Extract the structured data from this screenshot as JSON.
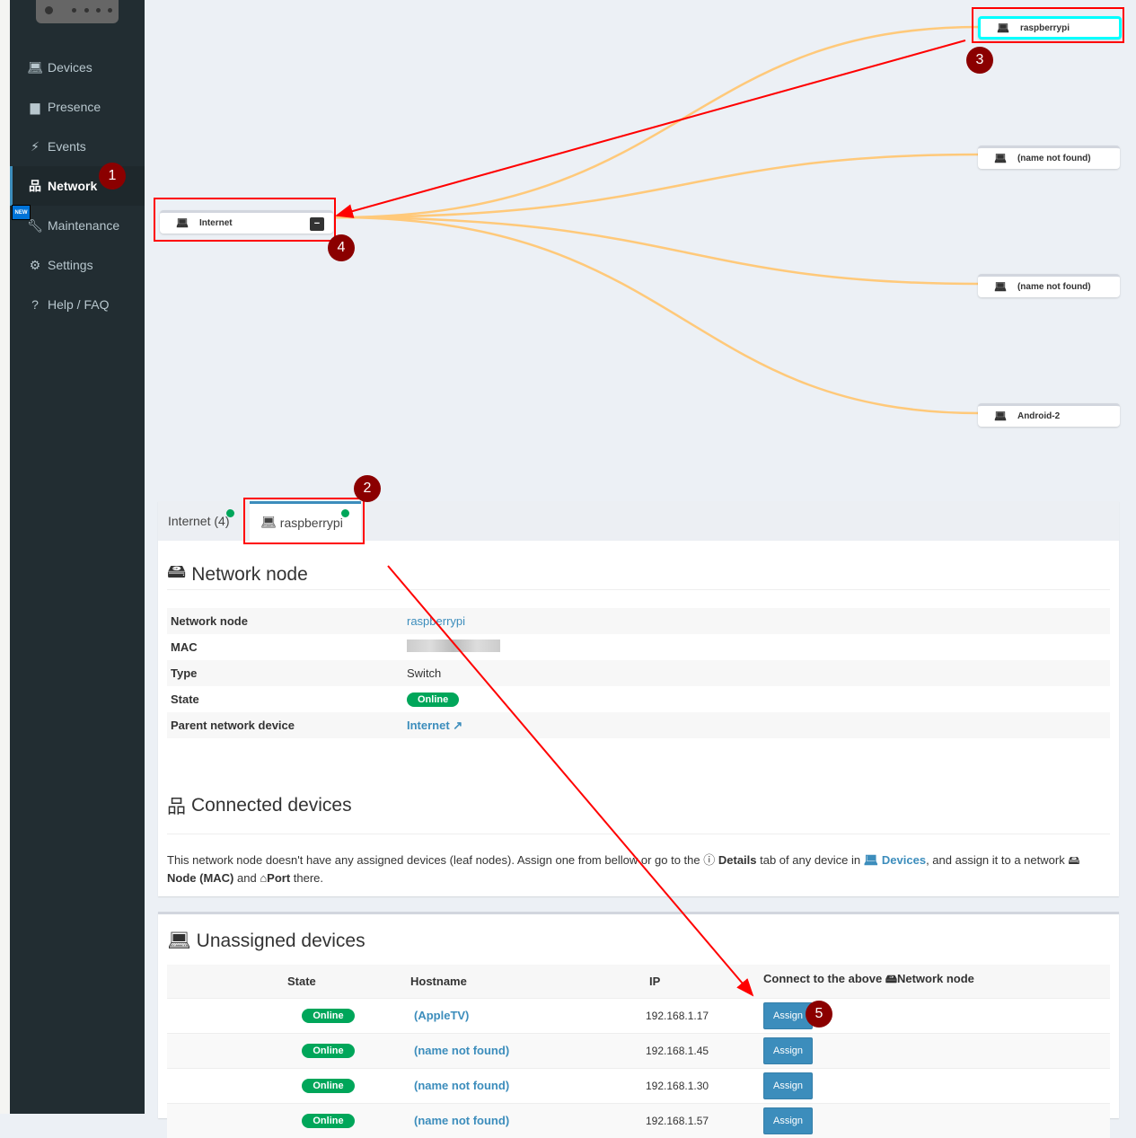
{
  "sidebar": {
    "items": [
      {
        "label": "Devices",
        "icon": "laptop-icon"
      },
      {
        "label": "Presence",
        "icon": "calendar-icon"
      },
      {
        "label": "Events",
        "icon": "bolt-icon"
      },
      {
        "label": "Network",
        "icon": "sitemap-icon",
        "active": true
      },
      {
        "label": "Maintenance",
        "icon": "wrench-icon",
        "badge": "NEW"
      },
      {
        "label": "Settings",
        "icon": "gear-icon"
      },
      {
        "label": "Help / FAQ",
        "icon": "question-icon"
      }
    ]
  },
  "graph": {
    "root": "Internet",
    "root_toggle": "−",
    "leaves": [
      "raspberrypi",
      "(name not found)",
      "(name not found)",
      "Android-2"
    ],
    "link_color": "#ffc97a",
    "selected_color": "#00ffff"
  },
  "tabs": [
    {
      "label": "Internet (4)"
    },
    {
      "label": "raspberrypi",
      "active": true
    }
  ],
  "node": {
    "title": "Network node",
    "rows": [
      {
        "key": "Network node",
        "value": "raspberrypi"
      },
      {
        "key": "MAC",
        "value": ""
      },
      {
        "key": "Type",
        "value": "Switch"
      },
      {
        "key": "State",
        "value": "Online"
      },
      {
        "key": "Parent network device",
        "value": "Internet"
      }
    ]
  },
  "connected": {
    "title": "Connected devices",
    "desc_a": "This network node doesn't have any assigned devices (leaf nodes). Assign one from bellow or go to the ",
    "desc_details": "Details",
    "desc_b": " tab of any device in ",
    "desc_devices": "Devices",
    "desc_c": ", and assign it to a network ",
    "desc_node": "Node (MAC)",
    "desc_d": " and ",
    "desc_port": "Port",
    "desc_e": " there."
  },
  "unassigned": {
    "title": "Unassigned devices",
    "headers": [
      "State",
      "Hostname",
      "IP",
      "Connect to the above",
      "Network node"
    ],
    "rows": [
      {
        "state": "Online",
        "hostname": "(AppleTV)",
        "ip": "192.168.1.17",
        "action": "Assign"
      },
      {
        "state": "Online",
        "hostname": "(name not found)",
        "ip": "192.168.1.45",
        "action": "Assign"
      },
      {
        "state": "Online",
        "hostname": "(name not found)",
        "ip": "192.168.1.30",
        "action": "Assign"
      },
      {
        "state": "Online",
        "hostname": "(name not found)",
        "ip": "192.168.1.57",
        "action": "Assign"
      }
    ]
  },
  "annotations": {
    "numbers": [
      "1",
      "2",
      "3",
      "4",
      "5"
    ],
    "color": "#ff0000"
  }
}
